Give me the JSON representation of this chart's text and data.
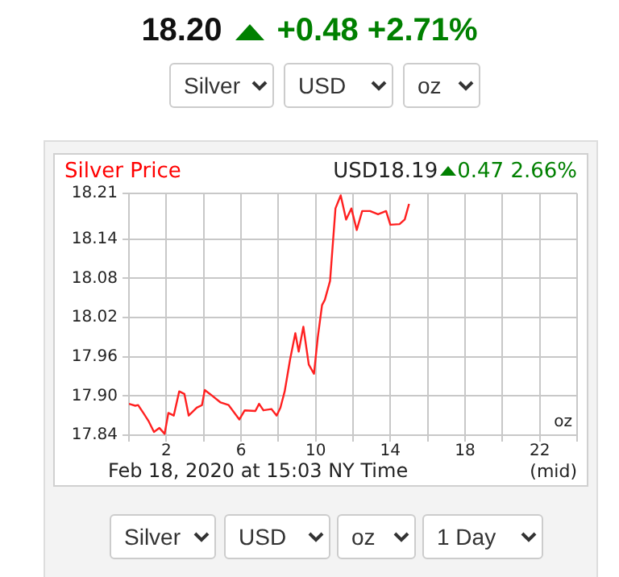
{
  "chart_data": {
    "type": "line",
    "title": "Silver Price",
    "x": [
      0,
      0.34,
      0.49,
      0.77,
      1.06,
      1.34,
      1.63,
      1.91,
      2.11,
      2.4,
      2.69,
      2.97,
      3.2,
      3.63,
      3.91,
      4.06,
      4.34,
      4.91,
      5.34,
      5.91,
      6.2,
      6.77,
      6.97,
      7.2,
      7.63,
      7.91,
      8.11,
      8.34,
      8.63,
      8.91,
      9.09,
      9.34,
      9.63,
      9.91,
      10.11,
      10.34,
      10.49,
      10.77,
      11.06,
      11.34,
      11.63,
      11.91,
      12.2,
      12.49,
      12.91,
      13.34,
      13.77,
      14.0,
      14.49,
      14.77,
      15.0
    ],
    "series": [
      {
        "color": "#ff2020",
        "values": [
          17.888,
          17.885,
          17.886,
          17.874,
          17.861,
          17.845,
          17.851,
          17.842,
          17.874,
          17.87,
          17.907,
          17.903,
          17.87,
          17.882,
          17.886,
          17.909,
          17.903,
          17.89,
          17.886,
          17.864,
          17.878,
          17.877,
          17.888,
          17.878,
          17.88,
          17.87,
          17.882,
          17.907,
          17.956,
          17.996,
          17.968,
          18.006,
          17.948,
          17.934,
          17.989,
          18.039,
          18.047,
          18.076,
          18.187,
          18.207,
          18.17,
          18.187,
          18.154,
          18.183,
          18.183,
          18.178,
          18.183,
          18.162,
          18.163,
          18.17,
          18.194
        ]
      }
    ],
    "xlim": [
      0,
      24
    ],
    "xticks": [
      {
        "value": 0,
        "label": null
      },
      2,
      {
        "value": 4,
        "label": null
      },
      6,
      {
        "value": 8,
        "label": null
      },
      10,
      {
        "value": 12,
        "label": null
      },
      14,
      {
        "value": 16,
        "label": null
      },
      18,
      {
        "value": 20,
        "label": null
      },
      22,
      {
        "value": 24,
        "label": null
      }
    ],
    "ylim": [
      17.84,
      18.21
    ],
    "yticks": [
      17.84,
      {
        "value": 17.9,
        "label": "17.90"
      },
      17.96,
      18.02,
      18.08,
      18.14,
      18.21
    ],
    "grid": true,
    "legend": false,
    "marker": "none",
    "annotations": [
      "18.20",
      "+0.48",
      "+2.71%",
      "Silver",
      "USD",
      "oz",
      "USD18.19",
      "0.47",
      "2.66%",
      "oz",
      "Feb 18, 2020 at 15:03 NY Time",
      "(mid)",
      "Silver",
      "USD",
      "oz",
      "1 Day"
    ]
  }
}
